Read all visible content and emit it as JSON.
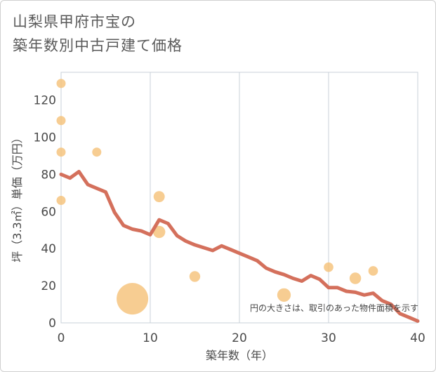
{
  "chart_data": {
    "type": "scatter+line",
    "title": [
      "山梨県甲府市宝の",
      "築年数別中古戸建て価格"
    ],
    "xlabel": "築年数（年）",
    "ylabel": "坪（3.3㎡）単価（万円）",
    "xlim": [
      0,
      40
    ],
    "ylim": [
      0,
      135
    ],
    "x_ticks": [
      0,
      10,
      20,
      30,
      40
    ],
    "y_ticks": [
      0,
      20,
      40,
      60,
      80,
      100,
      120
    ],
    "grid": "vertical",
    "annotation": "円の大きさは、取引のあった物件面積を示す",
    "colors": {
      "line": "#d4705c",
      "bubble": "#f5c27a"
    },
    "series": [
      {
        "name": "average",
        "type": "line",
        "x": [
          0,
          1,
          2,
          3,
          4,
          5,
          6,
          7,
          8,
          9,
          10,
          11,
          12,
          13,
          14,
          15,
          16,
          17,
          18,
          19,
          20,
          21,
          22,
          23,
          24,
          25,
          26,
          27,
          28,
          29,
          30,
          31,
          32,
          33,
          34,
          35,
          36,
          37,
          38,
          39,
          40
        ],
        "y": [
          80,
          78,
          81.5,
          74.5,
          72.5,
          70.5,
          59.5,
          52.5,
          50.5,
          49.5,
          47.5,
          55.5,
          53.5,
          47,
          44,
          42,
          40.5,
          39,
          41.5,
          39.5,
          37.5,
          35.5,
          33.5,
          29.5,
          27.5,
          26,
          24,
          22.5,
          25.5,
          23.5,
          19,
          19,
          17,
          16.5,
          15,
          16,
          12,
          10,
          5,
          3,
          1
        ]
      },
      {
        "name": "transactions",
        "type": "bubble",
        "points": [
          {
            "x": 0,
            "y": 129,
            "size": 1
          },
          {
            "x": 0,
            "y": 109,
            "size": 1
          },
          {
            "x": 0,
            "y": 92,
            "size": 1
          },
          {
            "x": 0,
            "y": 66,
            "size": 1
          },
          {
            "x": 4,
            "y": 92,
            "size": 1
          },
          {
            "x": 8,
            "y": 13,
            "size": 12
          },
          {
            "x": 11,
            "y": 68,
            "size": 1.5
          },
          {
            "x": 11,
            "y": 49,
            "size": 1.8
          },
          {
            "x": 15,
            "y": 25,
            "size": 1.4
          },
          {
            "x": 25,
            "y": 15,
            "size": 2.2
          },
          {
            "x": 30,
            "y": 30,
            "size": 1.1
          },
          {
            "x": 33,
            "y": 24,
            "size": 1.6
          },
          {
            "x": 35,
            "y": 28,
            "size": 1.1
          }
        ]
      }
    ]
  }
}
